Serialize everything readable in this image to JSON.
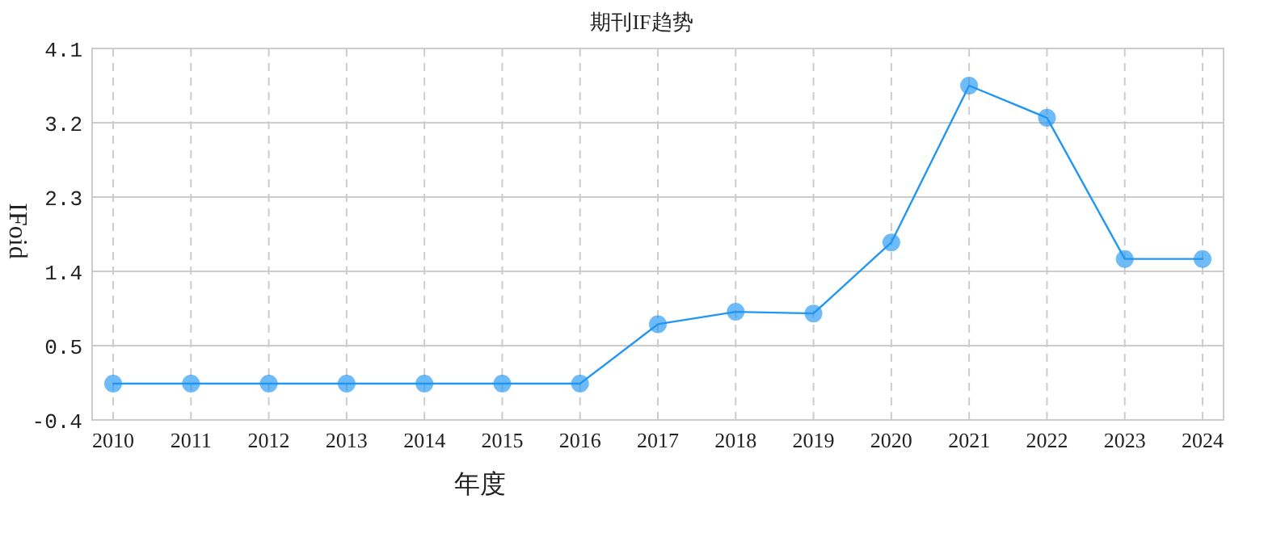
{
  "chart_data": {
    "type": "line",
    "title": "期刊IF趋势",
    "xlabel": "年度",
    "ylabel": "IFoid",
    "categories": [
      "2010",
      "2011",
      "2012",
      "2013",
      "2014",
      "2015",
      "2016",
      "2017",
      "2018",
      "2019",
      "2020",
      "2021",
      "2022",
      "2023",
      "2024"
    ],
    "series": [
      {
        "color": "#2196f3",
        "values": [
          0.04,
          0.04,
          0.04,
          0.04,
          0.04,
          0.04,
          0.04,
          0.76,
          0.91,
          0.89,
          1.75,
          3.65,
          3.26,
          1.55,
          1.55
        ]
      }
    ],
    "ylim": [
      -0.4,
      4.1
    ],
    "yticks": [
      -0.4,
      0.5,
      1.4,
      2.3,
      3.2,
      4.1
    ],
    "grid": true,
    "marker": "circle",
    "line_style": "solid"
  }
}
